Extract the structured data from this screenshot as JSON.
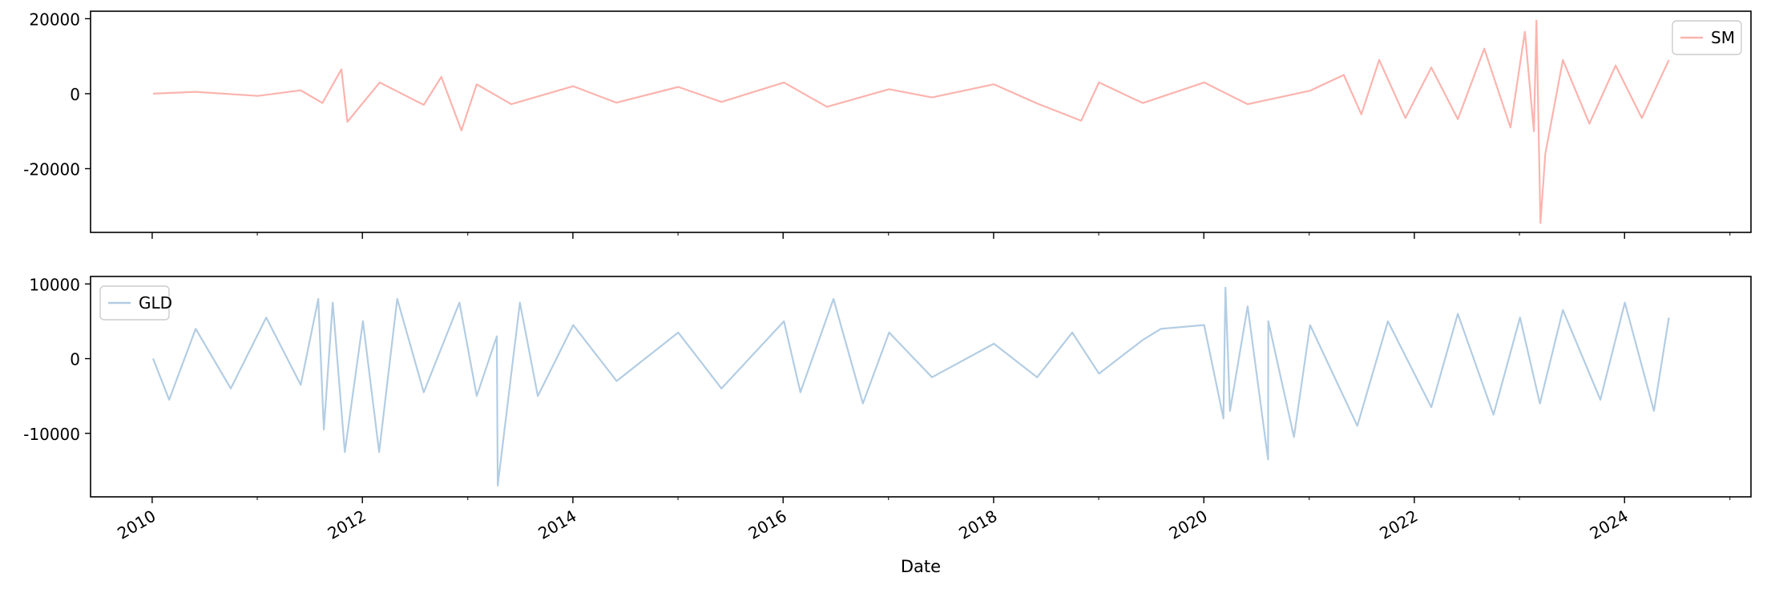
{
  "colors": {
    "sm_series": "#fbb4ae",
    "gld_series": "#b3cde3",
    "axis": "#000000",
    "legend_border": "#cccccc"
  },
  "chart_data": [
    {
      "type": "line",
      "title": "",
      "xlabel": "",
      "ylabel": "",
      "x_type": "date",
      "xlim": [
        "2009-06-01",
        "2025-03-15"
      ],
      "ylim": [
        -37000,
        22000
      ],
      "x_ticks": [
        "2010",
        "2012",
        "2014",
        "2016",
        "2018",
        "2020",
        "2022",
        "2024"
      ],
      "x_tick_labels_visible": false,
      "y_ticks": [
        20000,
        0,
        -20000
      ],
      "y_tick_labels": [
        "20000",
        "0",
        "-20000"
      ],
      "grid": false,
      "legend_position": "top-right",
      "series": [
        {
          "name": "SM",
          "color": "#fbb4ae",
          "x": [
            "2010-01-04",
            "2010-06-01",
            "2011-01-03",
            "2011-06-01",
            "2011-08-15",
            "2011-10-20",
            "2011-11-10",
            "2012-03-01",
            "2012-08-01",
            "2012-10-01",
            "2012-12-10",
            "2013-02-01",
            "2013-06-01",
            "2014-01-02",
            "2014-06-01",
            "2015-01-02",
            "2015-06-01",
            "2016-01-04",
            "2016-06-01",
            "2017-01-03",
            "2017-06-01",
            "2018-01-02",
            "2018-06-01",
            "2018-11-01",
            "2019-01-02",
            "2019-06-03",
            "2020-01-02",
            "2020-06-01",
            "2021-01-04",
            "2021-05-01",
            "2021-07-01",
            "2021-09-01",
            "2021-12-01",
            "2022-03-01",
            "2022-06-01",
            "2022-09-01",
            "2022-12-01",
            "2023-01-20",
            "2023-02-20",
            "2023-03-01",
            "2023-03-15",
            "2023-04-01",
            "2023-06-01",
            "2023-09-01",
            "2023-12-01",
            "2024-03-01",
            "2024-06-03"
          ],
          "y": [
            0,
            500,
            -600,
            900,
            -2500,
            6500,
            -7500,
            3000,
            -3000,
            4500,
            -9800,
            2500,
            -2800,
            2000,
            -2400,
            1800,
            -2200,
            3000,
            -3500,
            1200,
            -1000,
            2500,
            -2600,
            -7200,
            3000,
            -2500,
            3000,
            -2800,
            800,
            5000,
            -5500,
            9000,
            -6500,
            7000,
            -6800,
            12000,
            -9000,
            16500,
            -10000,
            19500,
            -34500,
            -16000,
            9000,
            -8000,
            7500,
            -6500,
            9000
          ]
        }
      ]
    },
    {
      "type": "line",
      "title": "",
      "xlabel": "Date",
      "ylabel": "",
      "x_type": "date",
      "xlim": [
        "2009-06-01",
        "2025-03-15"
      ],
      "ylim": [
        -18500,
        11000
      ],
      "x_ticks": [
        "2010",
        "2012",
        "2014",
        "2016",
        "2018",
        "2020",
        "2022",
        "2024"
      ],
      "x_tick_labels": [
        "2010",
        "2012",
        "2014",
        "2016",
        "2018",
        "2020",
        "2022",
        "2024"
      ],
      "y_ticks": [
        10000,
        0,
        -10000
      ],
      "y_tick_labels": [
        "10000",
        "0",
        "-10000"
      ],
      "grid": false,
      "legend_position": "top-left",
      "series": [
        {
          "name": "GLD",
          "color": "#b3cde3",
          "x": [
            "2010-01-04",
            "2010-03-01",
            "2010-06-01",
            "2010-10-01",
            "2011-02-01",
            "2011-06-01",
            "2011-08-01",
            "2011-08-20",
            "2011-09-20",
            "2011-11-01",
            "2012-01-03",
            "2012-02-28",
            "2012-05-01",
            "2012-08-01",
            "2012-12-03",
            "2013-02-01",
            "2013-04-12",
            "2013-04-15",
            "2013-07-01",
            "2013-09-01",
            "2014-01-02",
            "2014-06-02",
            "2015-01-02",
            "2015-06-01",
            "2016-01-04",
            "2016-03-01",
            "2016-06-24",
            "2016-10-04",
            "2017-01-03",
            "2017-06-01",
            "2018-01-02",
            "2018-06-01",
            "2018-10-01",
            "2019-01-02",
            "2019-06-03",
            "2019-08-05",
            "2020-01-02",
            "2020-03-09",
            "2020-03-16",
            "2020-04-01",
            "2020-06-01",
            "2020-08-11",
            "2020-08-12",
            "2020-11-09",
            "2021-01-04",
            "2021-06-17",
            "2021-10-01",
            "2022-03-01",
            "2022-06-01",
            "2022-10-03",
            "2023-01-03",
            "2023-03-13",
            "2023-06-01",
            "2023-10-09",
            "2024-01-02",
            "2024-04-12",
            "2024-06-03"
          ],
          "y": [
            0,
            -5500,
            4000,
            -4000,
            5500,
            -3500,
            8000,
            -9500,
            7500,
            -12500,
            5000,
            -12500,
            8000,
            -4500,
            7500,
            -5000,
            3000,
            -17000,
            7500,
            -5000,
            4500,
            -3000,
            3500,
            -4000,
            5000,
            -4500,
            8000,
            -6000,
            3500,
            -2500,
            2000,
            -2500,
            3500,
            -2000,
            2500,
            4000,
            4500,
            -8000,
            9500,
            -7000,
            7000,
            -13500,
            5000,
            -10500,
            4500,
            -9000,
            5000,
            -6500,
            6000,
            -7500,
            5500,
            -6000,
            6500,
            -5500,
            7500,
            -7000,
            5500
          ]
        }
      ]
    }
  ]
}
